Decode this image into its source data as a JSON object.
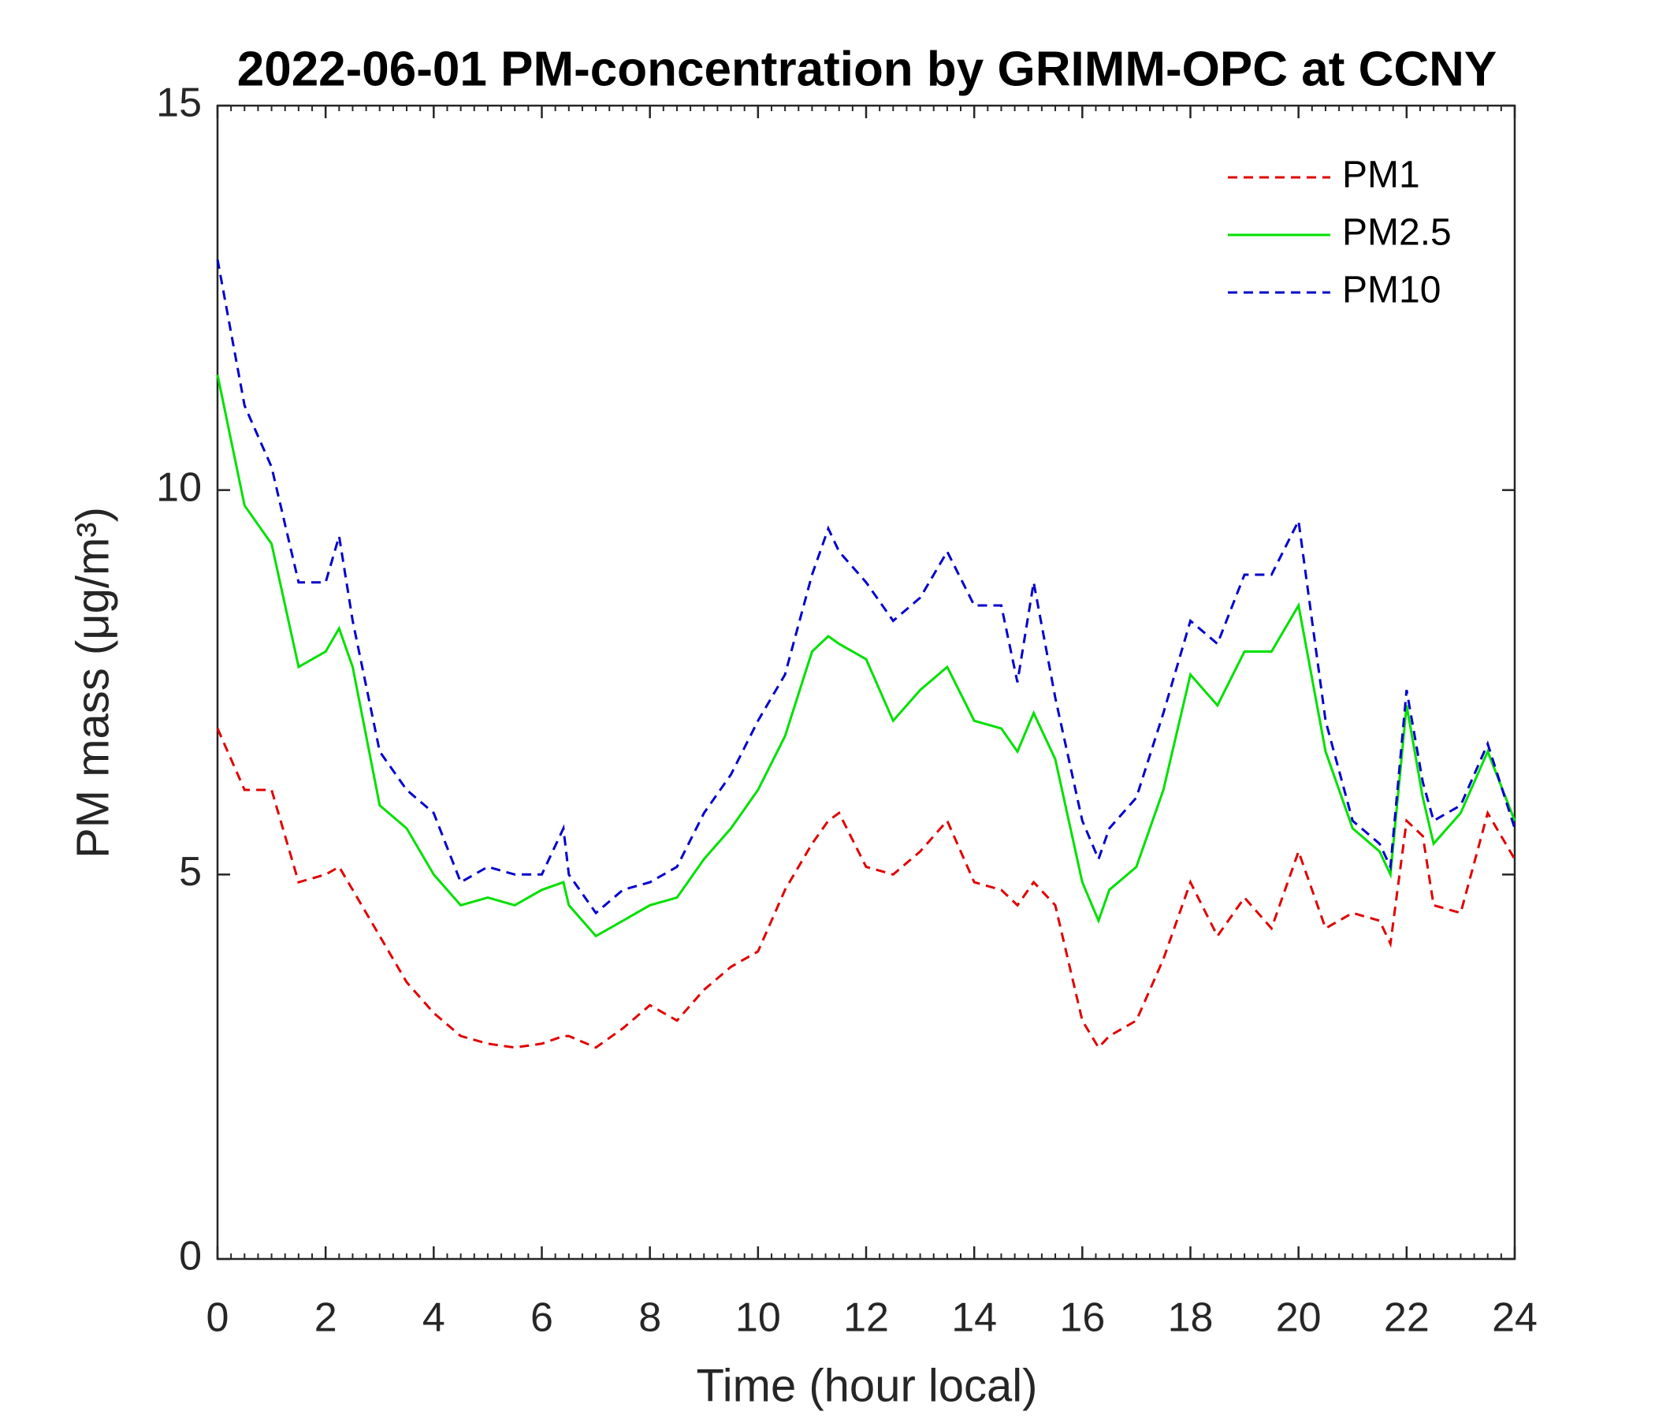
{
  "chart_data": {
    "type": "line",
    "title": "2022-06-01 PM-concentration by GRIMM-OPC at CCNY",
    "x_label": "Time (hour local)",
    "y_label": "PM mass (μg/m³)",
    "x": [
      0,
      0.5,
      1,
      1.5,
      2,
      2.25,
      2.5,
      3,
      3.5,
      4,
      4.5,
      5,
      5.5,
      6,
      6.4,
      6.5,
      7,
      7.5,
      8,
      8.5,
      9,
      9.5,
      10,
      10.5,
      11,
      11.3,
      11.5,
      12,
      12.5,
      13,
      13.5,
      14,
      14.5,
      14.8,
      15.1,
      15.5,
      16,
      16.3,
      16.5,
      17,
      17.5,
      18,
      18.5,
      19,
      19.5,
      20,
      20.5,
      21,
      21.5,
      21.7,
      22,
      22.3,
      22.5,
      23,
      23.5,
      24
    ],
    "series": [
      {
        "name": "PM1",
        "color": "#e00000",
        "dash": true,
        "values": [
          6.9,
          6.1,
          6.1,
          4.9,
          5.0,
          5.1,
          4.8,
          4.2,
          3.6,
          3.2,
          2.9,
          2.8,
          2.75,
          2.8,
          2.9,
          2.9,
          2.75,
          3.0,
          3.3,
          3.1,
          3.5,
          3.8,
          4.0,
          4.8,
          5.4,
          5.7,
          5.8,
          5.1,
          5.0,
          5.3,
          5.7,
          4.9,
          4.8,
          4.6,
          4.9,
          4.6,
          3.1,
          2.75,
          2.9,
          3.1,
          3.9,
          4.9,
          4.2,
          4.7,
          4.3,
          5.3,
          4.3,
          4.5,
          4.4,
          4.1,
          5.7,
          5.5,
          4.6,
          4.5,
          5.8,
          5.2
        ]
      },
      {
        "name": "PM2.5",
        "color": "#00e000",
        "dash": false,
        "values": [
          11.5,
          9.8,
          9.3,
          7.7,
          7.9,
          8.2,
          7.7,
          5.9,
          5.6,
          5.0,
          4.6,
          4.7,
          4.6,
          4.8,
          4.9,
          4.6,
          4.2,
          4.4,
          4.6,
          4.7,
          5.2,
          5.6,
          6.1,
          6.8,
          7.9,
          8.1,
          8.0,
          7.8,
          7.0,
          7.4,
          7.7,
          7.0,
          6.9,
          6.6,
          7.1,
          6.5,
          4.9,
          4.4,
          4.8,
          5.1,
          6.1,
          7.6,
          7.2,
          7.9,
          7.9,
          8.5,
          6.6,
          5.6,
          5.3,
          5.0,
          7.2,
          6.0,
          5.4,
          5.8,
          6.6,
          5.7
        ]
      },
      {
        "name": "PM10",
        "color": "#0000cc",
        "dash": true,
        "values": [
          13.0,
          11.1,
          10.3,
          8.8,
          8.8,
          9.4,
          8.3,
          6.6,
          6.1,
          5.8,
          4.9,
          5.1,
          5.0,
          5.0,
          5.6,
          5.0,
          4.5,
          4.8,
          4.9,
          5.1,
          5.8,
          6.3,
          7.0,
          7.6,
          8.9,
          9.5,
          9.2,
          8.8,
          8.3,
          8.6,
          9.2,
          8.5,
          8.5,
          7.5,
          8.8,
          7.3,
          5.7,
          5.2,
          5.6,
          6.0,
          7.1,
          8.3,
          8.0,
          8.9,
          8.9,
          9.6,
          7.0,
          5.7,
          5.4,
          5.1,
          7.4,
          6.2,
          5.7,
          5.9,
          6.7,
          5.6
        ]
      }
    ],
    "xlim": [
      0,
      24
    ],
    "xticks": [
      0,
      2,
      4,
      6,
      8,
      10,
      12,
      14,
      16,
      18,
      20,
      22,
      24
    ],
    "ylim": [
      0,
      15
    ],
    "yticks": [
      0,
      5,
      10,
      15
    ],
    "grid": false,
    "legend": "upper right"
  }
}
